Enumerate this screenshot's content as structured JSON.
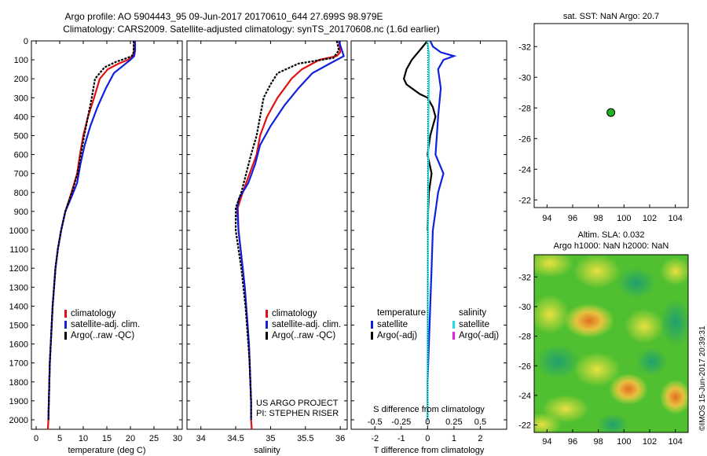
{
  "header": {
    "line1": "Argo profile: AO 5904443_95 09-Jun-2017 20170610_644 27.699S 98.979E",
    "line2": "Climatology: CARS2009. Satellite-adjusted climatology: synTS_20170608.nc (1.6d earlier)"
  },
  "colors": {
    "climatology": "#e01010",
    "satellite": "#1020e0",
    "argo": "#000000",
    "satellite_s": "#20e0e0",
    "argo_s": "#e020e0",
    "point": "#20b020"
  },
  "credits": {
    "line1": "US ARGO PROJECT",
    "line2": "PI: STEPHEN RISER"
  },
  "side_stamp": "©IMOS 15-Jun-2017 20:39:31",
  "map_top": {
    "title": "sat. SST: NaN Argo: 20.7"
  },
  "map_bottom": {
    "title1": "Altim. SLA: 0.032",
    "title2": "Argo h1000: NaN h2000: NaN"
  },
  "chart_data": [
    {
      "type": "line",
      "id": "temperature",
      "xlabel": "temperature (deg C)",
      "xlim": [
        -1,
        31
      ],
      "ylim": [
        2050,
        0
      ],
      "xticks": [
        0,
        5,
        10,
        15,
        20,
        25,
        30
      ],
      "yticks": [
        0,
        100,
        200,
        300,
        400,
        500,
        600,
        700,
        800,
        900,
        1000,
        1100,
        1200,
        1300,
        1400,
        1500,
        1600,
        1700,
        1800,
        1900,
        2000
      ],
      "legend": [
        "climatology",
        "satellite-adj. clim.",
        "Argo(..raw -QC)"
      ],
      "series": [
        {
          "name": "climatology",
          "points": [
            [
              20.8,
              0
            ],
            [
              20.8,
              50
            ],
            [
              20.5,
              80
            ],
            [
              19.5,
              100
            ],
            [
              17.5,
              120
            ],
            [
              15.2,
              150
            ],
            [
              13.5,
              200
            ],
            [
              12.3,
              300
            ],
            [
              11.0,
              400
            ],
            [
              10.0,
              500
            ],
            [
              9.3,
              600
            ],
            [
              8.7,
              700
            ],
            [
              7.5,
              800
            ],
            [
              6.2,
              900
            ],
            [
              5.3,
              1000
            ],
            [
              4.6,
              1100
            ],
            [
              4.1,
              1200
            ],
            [
              3.8,
              1300
            ],
            [
              3.5,
              1400
            ],
            [
              3.3,
              1500
            ],
            [
              3.1,
              1600
            ],
            [
              2.9,
              1700
            ],
            [
              2.8,
              1800
            ],
            [
              2.7,
              1900
            ],
            [
              2.6,
              2000
            ],
            [
              2.5,
              2050
            ]
          ]
        },
        {
          "name": "satellite-adj. clim.",
          "points": [
            [
              21.0,
              0
            ],
            [
              21.0,
              50
            ],
            [
              20.8,
              80
            ],
            [
              20.0,
              100
            ],
            [
              18.5,
              130
            ],
            [
              16.5,
              170
            ],
            [
              14.8,
              250
            ],
            [
              13.0,
              350
            ],
            [
              11.5,
              450
            ],
            [
              10.3,
              550
            ],
            [
              9.4,
              650
            ],
            [
              8.7,
              750
            ],
            [
              7.4,
              830
            ],
            [
              6.2,
              900
            ],
            [
              5.3,
              1000
            ],
            [
              4.6,
              1100
            ],
            [
              4.1,
              1200
            ],
            [
              3.8,
              1300
            ],
            [
              3.5,
              1400
            ],
            [
              3.3,
              1500
            ],
            [
              3.1,
              1600
            ],
            [
              2.9,
              1700
            ],
            [
              2.8,
              1800
            ],
            [
              2.7,
              1900
            ],
            [
              2.6,
              2000
            ]
          ]
        },
        {
          "name": "Argo(..raw -QC)",
          "points": [
            [
              20.7,
              0
            ],
            [
              20.7,
              60
            ],
            [
              20.3,
              80
            ],
            [
              18.8,
              95
            ],
            [
              17.0,
              110
            ],
            [
              14.5,
              140
            ],
            [
              12.5,
              200
            ],
            [
              11.8,
              300
            ],
            [
              11.0,
              400
            ],
            [
              10.2,
              500
            ],
            [
              9.5,
              600
            ],
            [
              8.8,
              700
            ],
            [
              7.6,
              800
            ],
            [
              6.2,
              900
            ],
            [
              5.3,
              1000
            ],
            [
              4.6,
              1100
            ],
            [
              4.1,
              1200
            ],
            [
              3.8,
              1300
            ],
            [
              3.5,
              1400
            ],
            [
              3.3,
              1500
            ],
            [
              3.1,
              1600
            ],
            [
              2.9,
              1700
            ],
            [
              2.8,
              1800
            ],
            [
              2.7,
              1900
            ],
            [
              2.6,
              2000
            ]
          ]
        }
      ]
    },
    {
      "type": "line",
      "id": "salinity",
      "xlabel": "salinity",
      "xlim": [
        33.8,
        36.1
      ],
      "ylim": [
        2050,
        0
      ],
      "xticks": [
        34,
        34.5,
        35,
        35.5,
        36
      ],
      "legend": [
        "climatology",
        "satellite-adj. clim.",
        "Argo(..raw -QC)"
      ],
      "series": [
        {
          "name": "climatology",
          "points": [
            [
              35.98,
              0
            ],
            [
              36.0,
              60
            ],
            [
              35.95,
              80
            ],
            [
              35.7,
              100
            ],
            [
              35.45,
              150
            ],
            [
              35.3,
              200
            ],
            [
              35.1,
              300
            ],
            [
              34.95,
              400
            ],
            [
              34.85,
              500
            ],
            [
              34.8,
              600
            ],
            [
              34.7,
              700
            ],
            [
              34.6,
              800
            ],
            [
              34.53,
              880
            ],
            [
              34.54,
              1000
            ],
            [
              34.57,
              1100
            ],
            [
              34.6,
              1200
            ],
            [
              34.63,
              1300
            ],
            [
              34.65,
              1400
            ],
            [
              34.67,
              1500
            ],
            [
              34.69,
              1600
            ],
            [
              34.7,
              1700
            ],
            [
              34.71,
              1800
            ],
            [
              34.72,
              1900
            ],
            [
              34.72,
              2000
            ],
            [
              34.73,
              2050
            ]
          ]
        },
        {
          "name": "satellite-adj. clim.",
          "points": [
            [
              35.98,
              0
            ],
            [
              36.05,
              80
            ],
            [
              35.85,
              120
            ],
            [
              35.6,
              170
            ],
            [
              35.4,
              250
            ],
            [
              35.2,
              340
            ],
            [
              35.0,
              450
            ],
            [
              34.85,
              550
            ],
            [
              34.78,
              650
            ],
            [
              34.68,
              750
            ],
            [
              34.55,
              830
            ],
            [
              34.52,
              880
            ],
            [
              34.54,
              1000
            ],
            [
              34.57,
              1100
            ],
            [
              34.6,
              1200
            ],
            [
              34.63,
              1300
            ],
            [
              34.65,
              1400
            ],
            [
              34.67,
              1500
            ],
            [
              34.69,
              1600
            ],
            [
              34.7,
              1700
            ],
            [
              34.71,
              1800
            ],
            [
              34.72,
              1900
            ],
            [
              34.72,
              2000
            ]
          ]
        },
        {
          "name": "Argo(..raw -QC)",
          "points": [
            [
              35.95,
              0
            ],
            [
              35.98,
              50
            ],
            [
              35.9,
              90
            ],
            [
              35.4,
              120
            ],
            [
              35.1,
              170
            ],
            [
              35.0,
              230
            ],
            [
              34.9,
              300
            ],
            [
              34.85,
              400
            ],
            [
              34.8,
              500
            ],
            [
              34.72,
              600
            ],
            [
              34.65,
              700
            ],
            [
              34.58,
              800
            ],
            [
              34.5,
              880
            ],
            [
              34.5,
              1000
            ],
            [
              34.54,
              1100
            ],
            [
              34.58,
              1200
            ],
            [
              34.61,
              1300
            ],
            [
              34.64,
              1400
            ],
            [
              34.66,
              1500
            ],
            [
              34.68,
              1600
            ],
            [
              34.7,
              1700
            ],
            [
              34.71,
              1800
            ],
            [
              34.72,
              1900
            ],
            [
              34.72,
              2000
            ]
          ]
        }
      ]
    },
    {
      "type": "line",
      "id": "difference",
      "xlabel": "T difference from climatology",
      "x2label": "S difference from climatology",
      "xlim": [
        -2.9,
        3.0
      ],
      "x2lim": [
        -0.725,
        0.75
      ],
      "ylim": [
        2050,
        0
      ],
      "xticks": [
        -2,
        -1,
        0,
        1,
        2
      ],
      "x2ticks": [
        -0.5,
        -0.25,
        0,
        0.25,
        0.5
      ],
      "legend": {
        "temperature": {
          "label": "temperature",
          "items": [
            "satellite",
            "Argo(-adj)"
          ]
        },
        "salinity": {
          "label": "salinity",
          "items": [
            "satellite",
            "Argo(-adj)"
          ]
        }
      },
      "series": [
        {
          "name": "T satellite",
          "points": [
            [
              0.1,
              0
            ],
            [
              0.2,
              30
            ],
            [
              0.5,
              60
            ],
            [
              1.0,
              80
            ],
            [
              0.6,
              100
            ],
            [
              0.4,
              150
            ],
            [
              0.5,
              250
            ],
            [
              0.4,
              400
            ],
            [
              0.35,
              500
            ],
            [
              0.3,
              600
            ],
            [
              0.6,
              700
            ],
            [
              0.4,
              800
            ],
            [
              0.3,
              900
            ],
            [
              0.2,
              1000
            ],
            [
              0.15,
              1200
            ],
            [
              0.1,
              1400
            ],
            [
              0.05,
              1600
            ],
            [
              0.0,
              1800
            ],
            [
              0.0,
              2000
            ]
          ]
        },
        {
          "name": "T Argo(-adj)",
          "points": [
            [
              0.0,
              0
            ],
            [
              -0.3,
              50
            ],
            [
              -0.6,
              100
            ],
            [
              -0.8,
              150
            ],
            [
              -0.9,
              200
            ],
            [
              -0.8,
              230
            ],
            [
              -0.3,
              280
            ],
            [
              0.0,
              300
            ],
            [
              0.2,
              350
            ],
            [
              0.3,
              400
            ],
            [
              0.2,
              450
            ],
            [
              0.1,
              500
            ],
            [
              0.0,
              600
            ],
            [
              0.15,
              700
            ],
            [
              0.05,
              800
            ],
            [
              0.02,
              900
            ],
            [
              0.0,
              1000
            ]
          ]
        },
        {
          "name": "S satellite",
          "points": [
            [
              -0.01,
              0
            ],
            [
              0.03,
              40
            ],
            [
              0.05,
              80
            ],
            [
              0.04,
              120
            ],
            [
              0.05,
              200
            ],
            [
              0.04,
              300
            ],
            [
              0.03,
              450
            ],
            [
              0.025,
              600
            ],
            [
              0.02,
              750
            ],
            [
              0.015,
              900
            ],
            [
              0.01,
              1200
            ],
            [
              0.005,
              1500
            ],
            [
              0.0,
              1800
            ],
            [
              0.0,
              2000
            ]
          ]
        }
      ]
    },
    {
      "type": "scatter",
      "id": "sst_map",
      "xlim": [
        93,
        105
      ],
      "ylim": [
        -33.5,
        -21.5
      ],
      "xticks": [
        94,
        96,
        98,
        100,
        102,
        104
      ],
      "yticks": [
        -22,
        -24,
        -26,
        -28,
        -30,
        -32
      ],
      "points": [
        [
          98.979,
          -27.699
        ]
      ]
    },
    {
      "type": "heatmap",
      "id": "sla_map",
      "xlim": [
        93,
        105
      ],
      "ylim": [
        -33.5,
        -21.5
      ],
      "xticks": [
        94,
        96,
        98,
        100,
        102,
        104
      ],
      "yticks": [
        -22,
        -24,
        -26,
        -28,
        -30,
        -32
      ]
    }
  ]
}
